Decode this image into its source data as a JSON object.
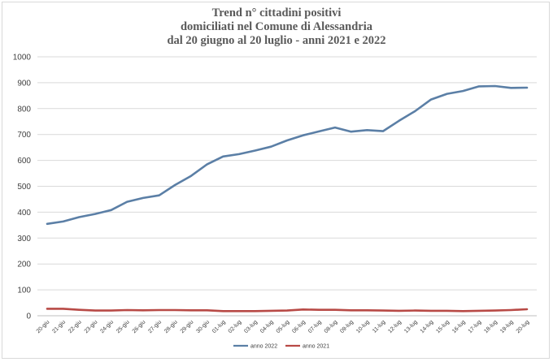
{
  "chart_data": {
    "type": "line",
    "title_lines": [
      "Trend n° cittadini positivi",
      "domiciliati nel Comune di Alessandria",
      "dal 20 giugno al 20 luglio - anni 2021 e 2022"
    ],
    "xlabel": "",
    "ylabel": "",
    "ylim": [
      0,
      1000
    ],
    "yticks": [
      "0",
      "100",
      "200",
      "300",
      "400",
      "500",
      "600",
      "700",
      "800",
      "900",
      "1000"
    ],
    "grid": true,
    "legend_position": "bottom",
    "categories": [
      "20-giu",
      "21-giu",
      "22-giu",
      "23-giu",
      "24-giu",
      "25-giu",
      "26-giu",
      "27-giu",
      "28-giu",
      "29-giu",
      "30-giu",
      "01-lug",
      "02-lug",
      "03-lug",
      "04-lug",
      "05-lug",
      "06-lug",
      "07-lug",
      "08-lug",
      "09-lug",
      "10-lug",
      "11-lug",
      "12-lug",
      "13-lug",
      "14-lug",
      "15-lug",
      "16-lug",
      "17-lug",
      "18-lug",
      "19-lug",
      "20-lug"
    ],
    "series": [
      {
        "name": "anno 2022",
        "color": "#5b7fa6",
        "values": [
          355,
          364,
          381,
          393,
          408,
          440,
          455,
          465,
          505,
          540,
          585,
          615,
          624,
          638,
          653,
          677,
          697,
          712,
          727,
          711,
          717,
          713,
          753,
          790,
          835,
          857,
          868,
          886,
          887,
          880,
          881
        ]
      },
      {
        "name": "anno 2021",
        "color": "#b84a46",
        "values": [
          27,
          27,
          23,
          20,
          20,
          22,
          21,
          22,
          22,
          21,
          21,
          18,
          18,
          18,
          19,
          20,
          24,
          23,
          23,
          21,
          21,
          20,
          19,
          20,
          19,
          19,
          18,
          19,
          20,
          22,
          25
        ]
      }
    ]
  }
}
